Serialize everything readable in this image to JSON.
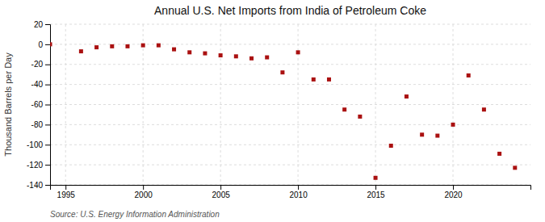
{
  "chart_data": {
    "type": "scatter",
    "title": "Annual U.S. Net Imports from India of Petroleum Coke",
    "ylabel": "Thousand Barrels per Day",
    "annotations": [
      "Source: U.S. Energy Information Administration"
    ],
    "x": [
      1994,
      1996,
      1997,
      1998,
      1999,
      2000,
      2001,
      2002,
      2003,
      2004,
      2005,
      2006,
      2007,
      2008,
      2009,
      2010,
      2011,
      2012,
      2013,
      2014,
      2015,
      2016,
      2017,
      2018,
      2019,
      2020,
      2021,
      2022,
      2023,
      2024
    ],
    "values": [
      0,
      -7,
      -3,
      -2,
      -2,
      -1,
      -1,
      -5,
      -8,
      -9,
      -11,
      -12,
      -14,
      -13,
      -28,
      -8,
      -35,
      -35,
      -65,
      -72,
      -133,
      -101,
      -52,
      -90,
      -91,
      -80,
      -31,
      -65,
      -109,
      -123
    ],
    "color": "#aa1111",
    "marker": "square",
    "xlim": [
      1994.0,
      2025.0
    ],
    "ylim": [
      -140,
      20
    ],
    "xticks": [
      1995,
      2000,
      2005,
      2010,
      2015,
      2020
    ],
    "yticks": [
      20,
      0,
      -20,
      -40,
      -60,
      -80,
      -100,
      -120,
      -140
    ],
    "grid": true
  }
}
